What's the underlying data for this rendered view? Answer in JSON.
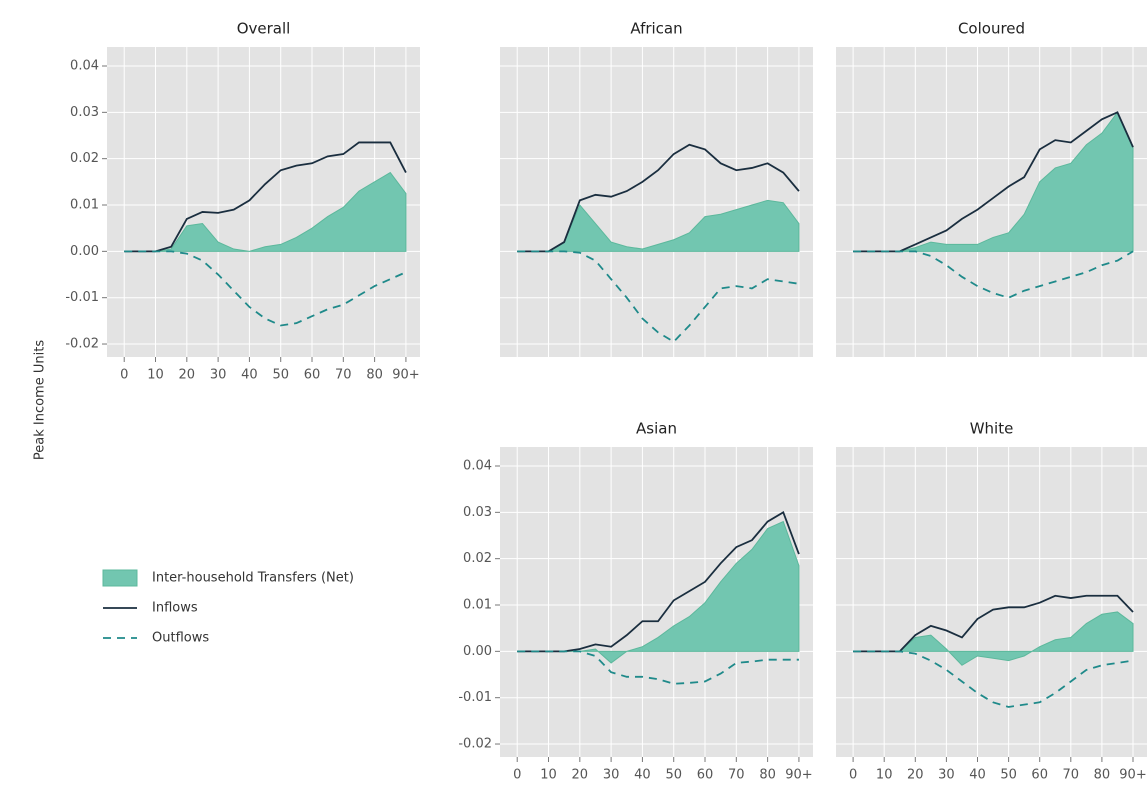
{
  "chart_data": [
    {
      "type": "line",
      "title": "Overall",
      "ylabel": "Peak Income Units",
      "legend": true,
      "xlim": [
        -5.5,
        94.5
      ],
      "ylim": [
        -0.0228,
        0.0441
      ],
      "xticks": [
        0,
        10,
        20,
        30,
        40,
        50,
        60,
        70,
        80,
        {
          "value": 90,
          "label": "90+"
        }
      ],
      "yticks": [
        -0.02,
        -0.01,
        {
          "value": 0,
          "label": "0.00"
        },
        0.01,
        0.02,
        0.03,
        0.04
      ],
      "x_tick_labels": true,
      "y_tick_labels": true,
      "grid": true,
      "x": [
        0,
        5,
        10,
        15,
        20,
        25,
        30,
        35,
        40,
        45,
        50,
        55,
        60,
        65,
        70,
        75,
        80,
        85,
        90
      ],
      "series": [
        {
          "name": "Inter-household Transfers (Net)",
          "style": "area",
          "color": "#72c6b0",
          "values": [
            0,
            0,
            0,
            0.0005,
            0.0055,
            0.006,
            0.002,
            0.0005,
            0,
            0.001,
            0.0015,
            0.003,
            0.005,
            0.0075,
            0.0095,
            0.013,
            0.015,
            0.017,
            0.0125
          ]
        },
        {
          "name": "Inflows",
          "style": "solid",
          "color": "#1a2e3f",
          "values": [
            0,
            0,
            0,
            0.001,
            0.007,
            0.0085,
            0.0083,
            0.009,
            0.011,
            0.0145,
            0.0175,
            0.0185,
            0.019,
            0.0205,
            0.021,
            0.0235,
            0.0235,
            0.0235,
            0.017
          ]
        },
        {
          "name": "Outflows",
          "style": "dashed",
          "color": "#1f8a8a",
          "values": [
            0,
            0,
            0,
            0,
            -0.0005,
            -0.002,
            -0.005,
            -0.0085,
            -0.012,
            -0.0145,
            -0.016,
            -0.0155,
            -0.014,
            -0.0125,
            -0.0115,
            -0.0095,
            -0.0075,
            -0.006,
            -0.0045
          ]
        }
      ]
    },
    {
      "type": "line",
      "title": "African",
      "xlim": [
        -5.5,
        94.5
      ],
      "ylim": [
        -0.0228,
        0.0441
      ],
      "xticks": [
        0,
        10,
        20,
        30,
        40,
        50,
        60,
        70,
        80,
        90
      ],
      "yticks": [
        -0.02,
        -0.01,
        0,
        0.01,
        0.02,
        0.03,
        0.04
      ],
      "x_tick_labels": false,
      "y_tick_labels": false,
      "grid": true,
      "x": [
        0,
        5,
        10,
        15,
        20,
        25,
        30,
        35,
        40,
        45,
        50,
        55,
        60,
        65,
        70,
        75,
        80,
        85,
        90
      ],
      "series": [
        {
          "name": "Inter-household Transfers (Net)",
          "style": "area",
          "color": "#72c6b0",
          "values": [
            0,
            0,
            0,
            0.002,
            0.01,
            0.006,
            0.002,
            0.001,
            0.0005,
            0.0015,
            0.0025,
            0.004,
            0.0075,
            0.008,
            0.009,
            0.01,
            0.011,
            0.0105,
            0.006
          ]
        },
        {
          "name": "Inflows",
          "style": "solid",
          "color": "#1a2e3f",
          "values": [
            0,
            0,
            0,
            0.002,
            0.011,
            0.0122,
            0.0118,
            0.013,
            0.015,
            0.0175,
            0.021,
            0.023,
            0.022,
            0.019,
            0.0175,
            0.018,
            0.019,
            0.017,
            0.013
          ]
        },
        {
          "name": "Outflows",
          "style": "dashed",
          "color": "#1f8a8a",
          "values": [
            0,
            0,
            0,
            0,
            -0.0003,
            -0.002,
            -0.006,
            -0.01,
            -0.0145,
            -0.0175,
            -0.0195,
            -0.016,
            -0.012,
            -0.008,
            -0.0075,
            -0.008,
            -0.006,
            -0.0065,
            -0.007
          ]
        }
      ]
    },
    {
      "type": "line",
      "title": "Coloured",
      "xlim": [
        -5.5,
        94.5
      ],
      "ylim": [
        -0.0228,
        0.0441
      ],
      "xticks": [
        0,
        10,
        20,
        30,
        40,
        50,
        60,
        70,
        80,
        90
      ],
      "yticks": [
        -0.02,
        -0.01,
        0,
        0.01,
        0.02,
        0.03,
        0.04
      ],
      "x_tick_labels": false,
      "y_tick_labels": false,
      "grid": true,
      "x": [
        0,
        5,
        10,
        15,
        20,
        25,
        30,
        35,
        40,
        45,
        50,
        55,
        60,
        65,
        70,
        75,
        80,
        85,
        90
      ],
      "series": [
        {
          "name": "Inter-household Transfers (Net)",
          "style": "area",
          "color": "#72c6b0",
          "values": [
            0,
            0,
            0,
            0,
            0.0008,
            0.002,
            0.0015,
            0.0015,
            0.0015,
            0.003,
            0.004,
            0.008,
            0.015,
            0.018,
            0.019,
            0.023,
            0.0255,
            0.03,
            0.0225
          ]
        },
        {
          "name": "Inflows",
          "style": "solid",
          "color": "#1a2e3f",
          "values": [
            0,
            0,
            0,
            0,
            0.0015,
            0.003,
            0.0045,
            0.007,
            0.009,
            0.0115,
            0.014,
            0.016,
            0.022,
            0.024,
            0.0235,
            0.026,
            0.0285,
            0.03,
            0.0225
          ]
        },
        {
          "name": "Outflows",
          "style": "dashed",
          "color": "#1f8a8a",
          "values": [
            0,
            0,
            0,
            0,
            0,
            -0.001,
            -0.003,
            -0.0055,
            -0.0075,
            -0.009,
            -0.01,
            -0.0085,
            -0.0075,
            -0.0065,
            -0.0055,
            -0.0045,
            -0.003,
            -0.002,
            0
          ]
        }
      ]
    },
    {
      "type": "line",
      "title": "Asian",
      "xlim": [
        -5.5,
        94.5
      ],
      "ylim": [
        -0.0228,
        0.0441
      ],
      "xticks": [
        0,
        10,
        20,
        30,
        40,
        50,
        60,
        70,
        80,
        {
          "value": 90,
          "label": "90+"
        }
      ],
      "yticks": [
        -0.02,
        -0.01,
        {
          "value": 0,
          "label": "0.00"
        },
        0.01,
        0.02,
        0.03,
        0.04
      ],
      "x_tick_labels": true,
      "y_tick_labels": true,
      "grid": true,
      "x": [
        0,
        5,
        10,
        15,
        20,
        25,
        30,
        35,
        40,
        45,
        50,
        55,
        60,
        65,
        70,
        75,
        80,
        85,
        90
      ],
      "series": [
        {
          "name": "Inter-household Transfers (Net)",
          "style": "area",
          "color": "#72c6b0",
          "values": [
            0,
            0,
            0,
            0,
            0,
            0.0005,
            -0.0025,
            0,
            0.001,
            0.003,
            0.0055,
            0.0075,
            0.0105,
            0.015,
            0.019,
            0.022,
            0.0265,
            0.028,
            0.0185
          ]
        },
        {
          "name": "Inflows",
          "style": "solid",
          "color": "#1a2e3f",
          "values": [
            0,
            0,
            0,
            0,
            0.0005,
            0.0015,
            0.001,
            0.0035,
            0.0065,
            0.0065,
            0.011,
            0.013,
            0.015,
            0.019,
            0.0225,
            0.024,
            0.028,
            0.03,
            0.021
          ]
        },
        {
          "name": "Outflows",
          "style": "dashed",
          "color": "#1f8a8a",
          "values": [
            0,
            0,
            0,
            0,
            0,
            -0.001,
            -0.0045,
            -0.0055,
            -0.0055,
            -0.006,
            -0.007,
            -0.0068,
            -0.0065,
            -0.0048,
            -0.0025,
            -0.0022,
            -0.0018,
            -0.0018,
            -0.0018
          ]
        }
      ]
    },
    {
      "type": "line",
      "title": "White",
      "xlim": [
        -5.5,
        94.5
      ],
      "ylim": [
        -0.0228,
        0.0441
      ],
      "xticks": [
        0,
        10,
        20,
        30,
        40,
        50,
        60,
        70,
        80,
        {
          "value": 90,
          "label": "90+"
        }
      ],
      "yticks": [
        -0.02,
        -0.01,
        0,
        0.01,
        0.02,
        0.03,
        0.04
      ],
      "x_tick_labels": true,
      "y_tick_labels": false,
      "grid": true,
      "x": [
        0,
        5,
        10,
        15,
        20,
        25,
        30,
        35,
        40,
        45,
        50,
        55,
        60,
        65,
        70,
        75,
        80,
        85,
        90
      ],
      "series": [
        {
          "name": "Inter-household Transfers (Net)",
          "style": "area",
          "color": "#72c6b0",
          "values": [
            0,
            0,
            0,
            0,
            0.003,
            0.0035,
            0.0005,
            -0.003,
            -0.001,
            -0.0015,
            -0.002,
            -0.001,
            0.001,
            0.0025,
            0.003,
            0.006,
            0.008,
            0.0085,
            0.006
          ]
        },
        {
          "name": "Inflows",
          "style": "solid",
          "color": "#1a2e3f",
          "values": [
            0,
            0,
            0,
            0,
            0.0035,
            0.0055,
            0.0045,
            0.003,
            0.007,
            0.009,
            0.0095,
            0.0095,
            0.0105,
            0.012,
            0.0115,
            0.012,
            0.012,
            0.012,
            0.0085
          ]
        },
        {
          "name": "Outflows",
          "style": "dashed",
          "color": "#1f8a8a",
          "values": [
            0,
            0,
            0,
            0,
            -0.0005,
            -0.002,
            -0.004,
            -0.0065,
            -0.009,
            -0.011,
            -0.012,
            -0.0115,
            -0.011,
            -0.009,
            -0.0065,
            -0.004,
            -0.003,
            -0.0025,
            -0.002
          ]
        }
      ]
    }
  ]
}
